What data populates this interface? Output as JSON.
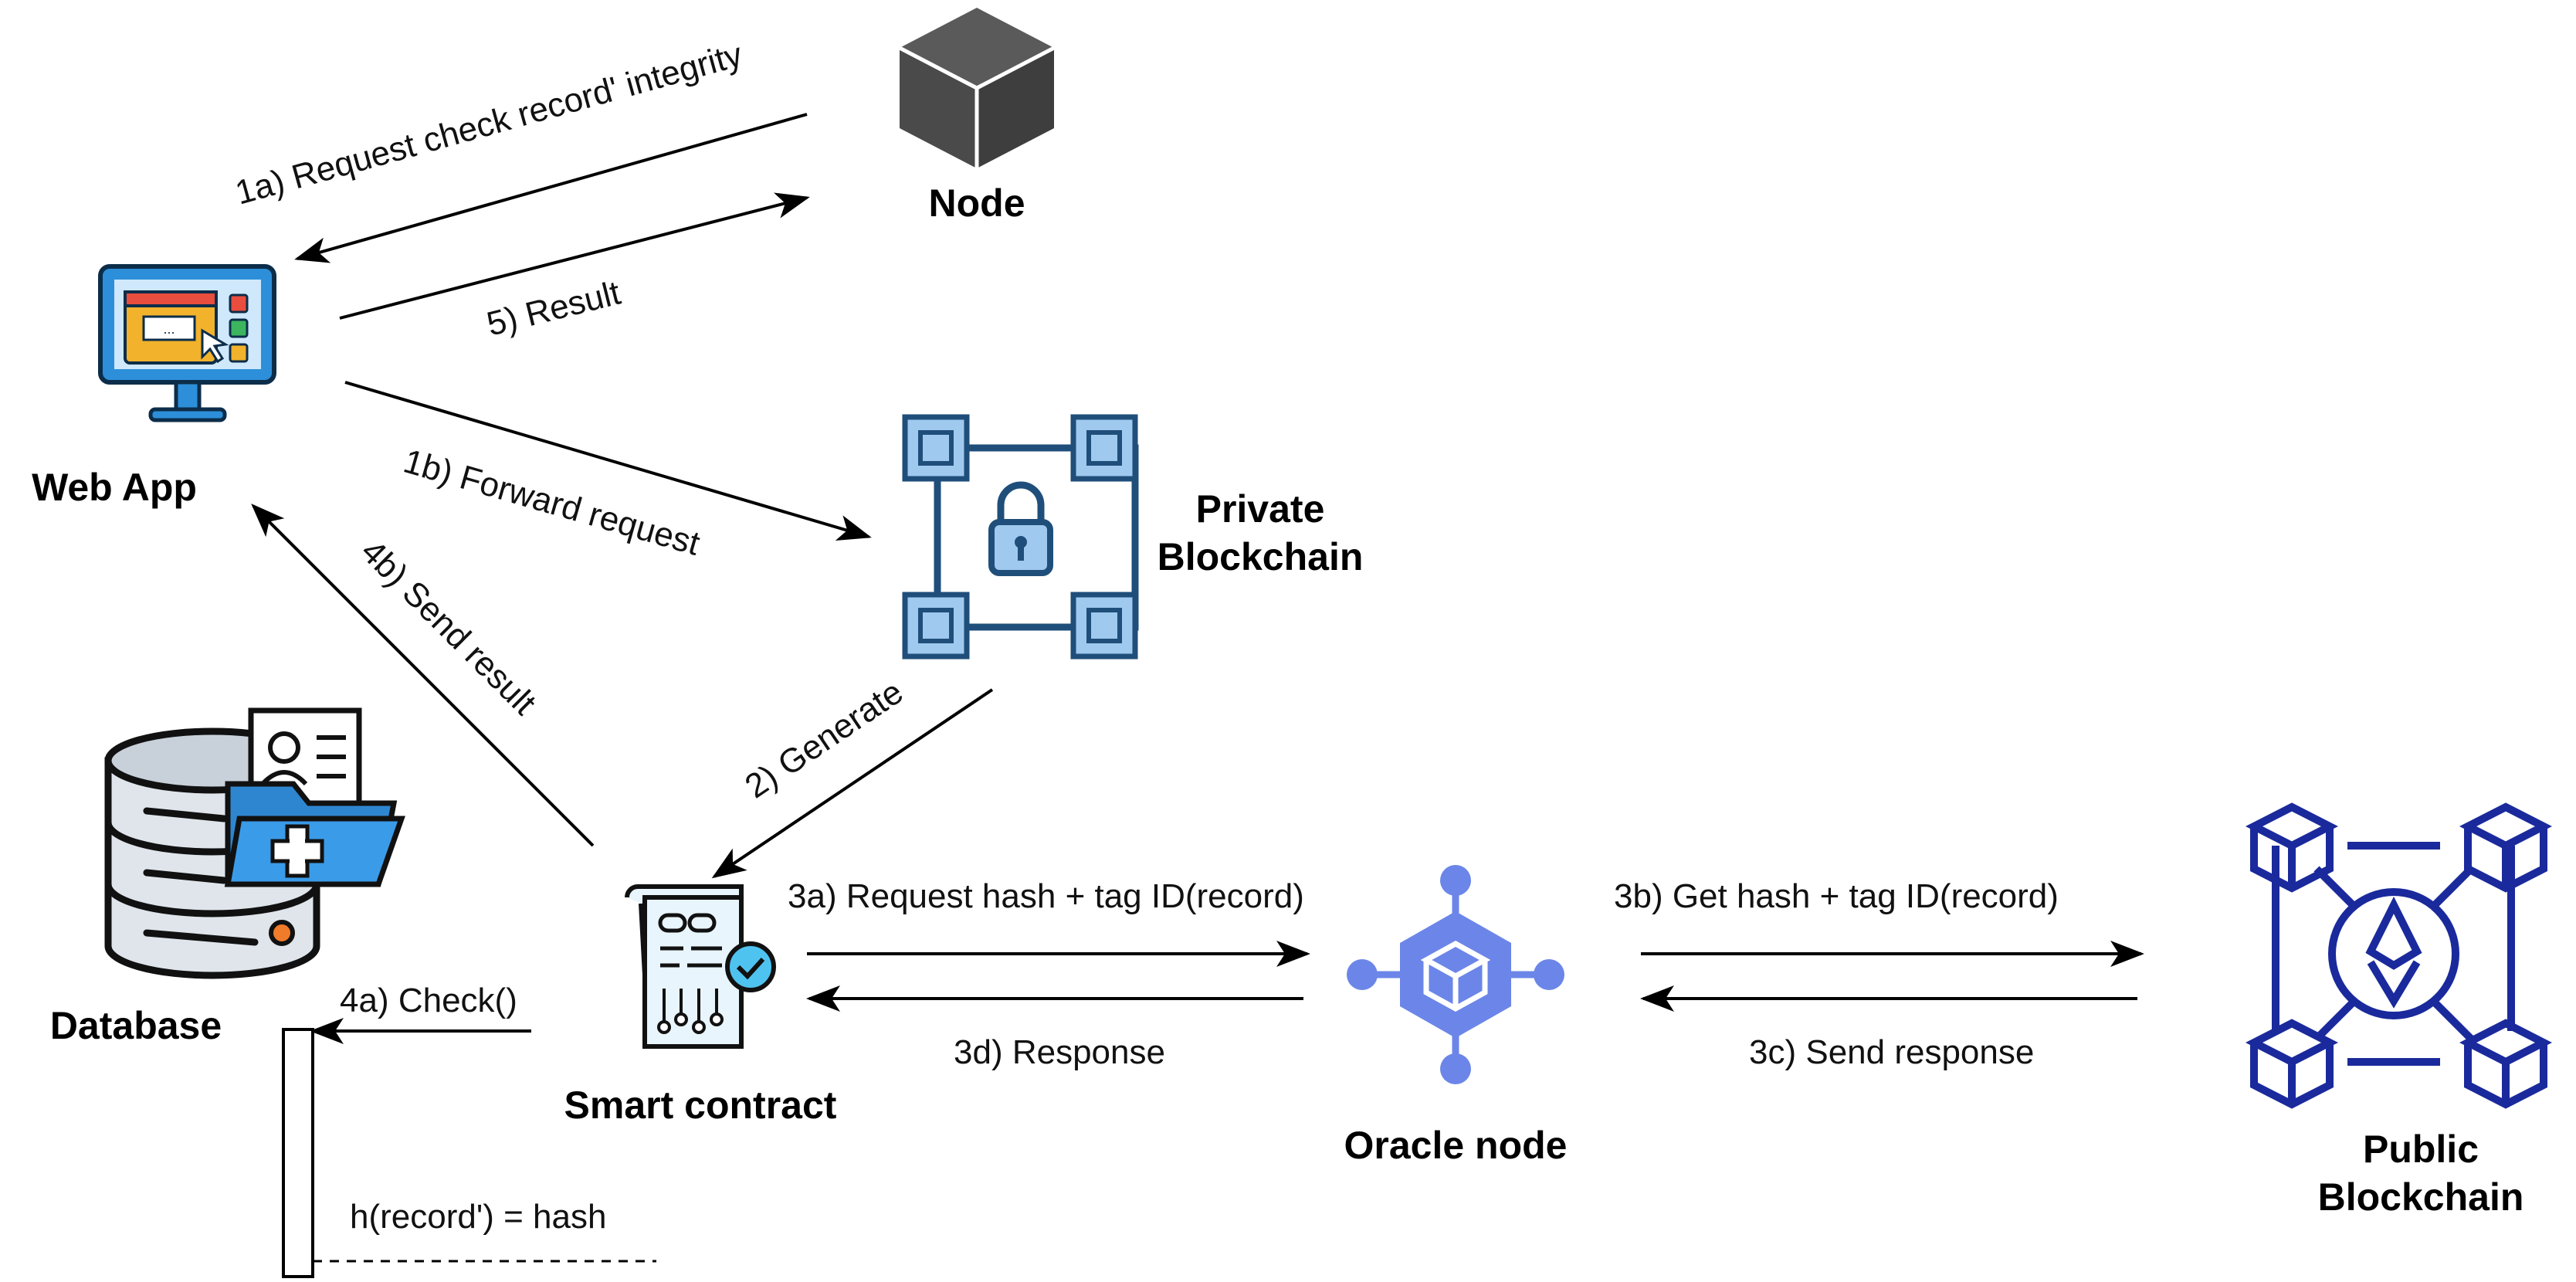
{
  "nodes": {
    "node": {
      "label": "Node"
    },
    "web_app": {
      "label": "Web App"
    },
    "private_blockchain": {
      "label_line1": "Private",
      "label_line2": "Blockchain"
    },
    "database": {
      "label": "Database"
    },
    "smart_contract": {
      "label": "Smart contract"
    },
    "oracle_node": {
      "label": "Oracle node"
    },
    "public_blockchain": {
      "label_line1": "Public",
      "label_line2": "Blockchain"
    }
  },
  "edges": {
    "e1a": "1a) Request check record' integrity",
    "e5": "5) Result",
    "e1b": "1b) Forward request",
    "e4b": "4b) Send result",
    "e2": "2) Generate",
    "e3a": "3a) Request hash + tag ID(record)",
    "e3d": "3d) Response",
    "e3b": "3b) Get hash + tag ID(record)",
    "e3c": "3c) Send response",
    "e4a": "4a) Check()",
    "hash_note": "h(record') = hash"
  },
  "colors": {
    "node_cube": "#4a4a4a",
    "private_chain": "#1f4e7a",
    "private_chain_fill": "#9fc9ee",
    "oracle": "#6b86e8",
    "public_chain": "#1a2a9c",
    "monitor_frame": "#2d8fd9",
    "database_body": "#dfe5eb",
    "folder": "#2e86d0"
  }
}
